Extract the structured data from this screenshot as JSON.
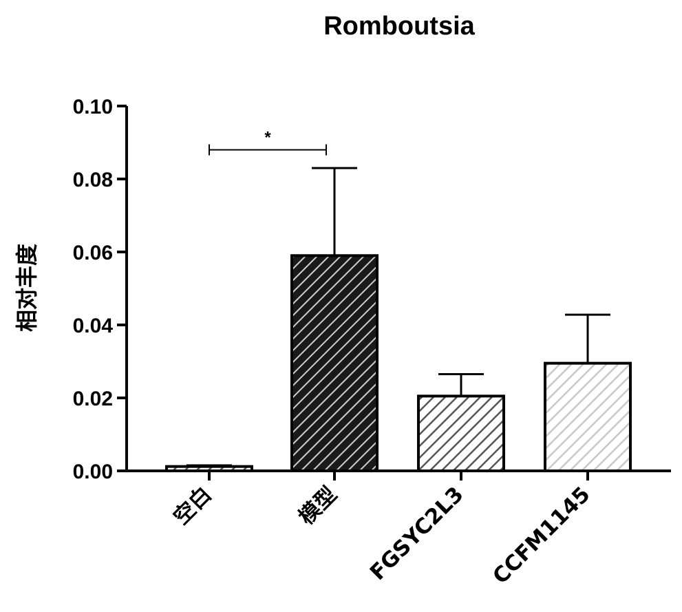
{
  "chart_data": {
    "type": "bar",
    "title": "Romboutsia",
    "ylabel": "相对丰度",
    "xlabel": "",
    "ylim": [
      0,
      0.1
    ],
    "yticks": [
      "0.00",
      "0.02",
      "0.04",
      "0.06",
      "0.08",
      "0.10"
    ],
    "categories": [
      "空白",
      "模型",
      "FGSYC2L3",
      "CCFM1145"
    ],
    "values": [
      0.0012,
      0.059,
      0.0205,
      0.0295
    ],
    "error_upper": [
      0.0015,
      0.083,
      0.0265,
      0.0428
    ],
    "bar_fills": [
      "#ffffff",
      "#1a1a1a",
      "#ffffff",
      "#ffffff"
    ],
    "bar_hatch_colors": [
      "#555555",
      "#cfcfcf",
      "#555555",
      "#c8c8c8"
    ],
    "significance": [
      {
        "from": 0,
        "to": 1,
        "label": "*",
        "y": 0.088
      }
    ]
  }
}
